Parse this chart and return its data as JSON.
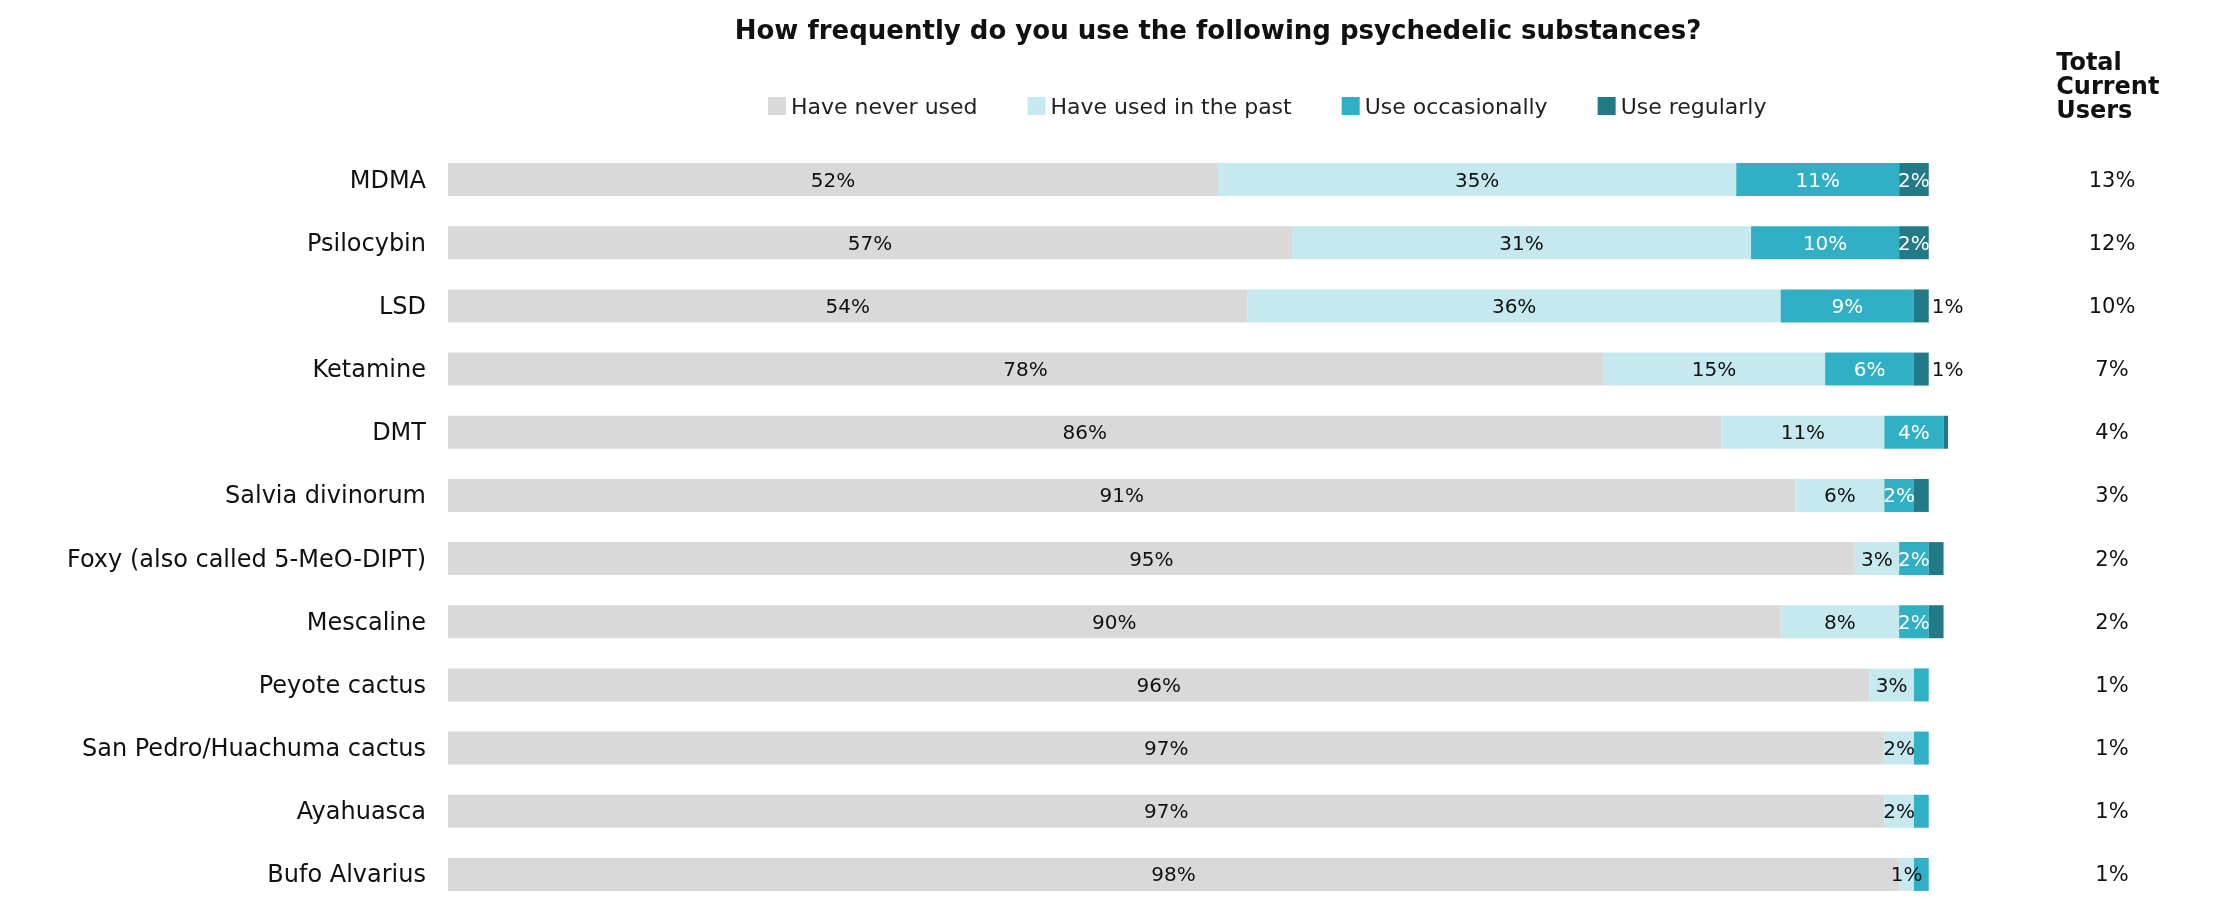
{
  "chart_data": [
    {
      "type": "bar",
      "orientation": "horizontal",
      "stacked": true,
      "title": "How frequently do you use the following psychedelic substances?",
      "categories": [
        "MDMA",
        "Psilocybin",
        "LSD",
        "Ketamine",
        "DMT",
        "Salvia divinorum",
        "Foxy (also called 5-MeO-DIPT)",
        "Mescaline",
        "Peyote cactus",
        "San Pedro/Huachuma cactus",
        "Ayahuasca",
        "Bufo Alvarius"
      ],
      "series": [
        {
          "name": "Have never used",
          "color": "#d9d9d9",
          "values": [
            52,
            57,
            54,
            78,
            86,
            91,
            95,
            90,
            96,
            97,
            97,
            98
          ],
          "value_labels": [
            "52%",
            "57%",
            "54%",
            "78%",
            "86%",
            "91%",
            "95%",
            "90%",
            "96%",
            "97%",
            "97%",
            "98%"
          ]
        },
        {
          "name": "Have used in the past",
          "color": "#c5e9ef",
          "values": [
            35,
            31,
            36,
            15,
            11,
            6,
            3,
            8,
            3,
            2,
            2,
            1
          ],
          "value_labels": [
            "35%",
            "31%",
            "36%",
            "15%",
            "11%",
            "6%",
            "3%",
            "8%",
            "3%",
            "2%",
            "2%",
            "1%"
          ]
        },
        {
          "name": "Use occasionally",
          "color": "#31b0c5",
          "values": [
            11,
            10,
            9,
            6,
            4,
            2,
            2,
            2,
            1,
            1,
            1,
            1
          ],
          "value_labels": [
            "11%",
            "10%",
            "9%",
            "6%",
            "4%",
            "2%",
            "2%",
            "2%",
            null,
            null,
            null,
            null
          ]
        },
        {
          "name": "Use regularly",
          "color": "#227a87",
          "values": [
            2,
            2,
            1,
            1,
            0.3,
            1,
            1,
            1,
            null,
            null,
            null,
            null
          ],
          "value_labels": [
            "2%",
            "2%",
            "1%",
            "1%",
            null,
            null,
            null,
            null,
            null,
            null,
            null,
            null
          ]
        }
      ],
      "tick_labels": "y",
      "legend": "top"
    },
    {
      "type": "other",
      "title": "Total Current Users",
      "annotations": [
        "13%",
        "12%",
        "10%",
        "7%",
        "4%",
        "3%",
        "2%",
        "2%",
        "1%",
        "1%",
        "1%",
        "1%"
      ]
    }
  ]
}
